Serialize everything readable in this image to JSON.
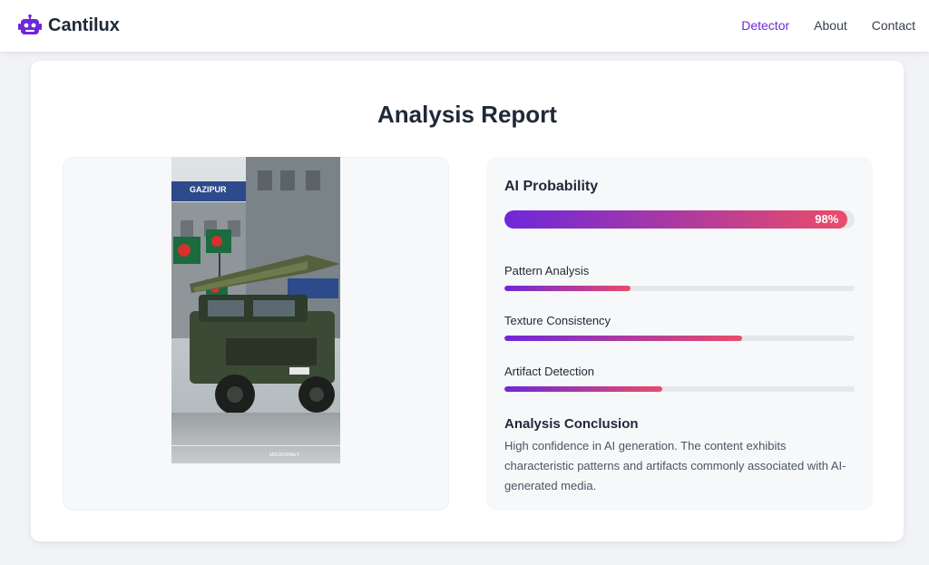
{
  "brand": {
    "name": "Cantilux",
    "icon": "robot-icon",
    "color": "#6d28d9"
  },
  "nav": [
    {
      "label": "Detector",
      "active": true
    },
    {
      "label": "About",
      "active": false
    },
    {
      "label": "Contact",
      "active": false
    }
  ],
  "report": {
    "title": "Analysis Report",
    "image": {
      "sign_text": "GAZIPUR",
      "watermark": "MIDJOURNEY"
    },
    "ai_probability": {
      "label": "AI Probability",
      "value": 98,
      "display": "98%"
    },
    "metrics": [
      {
        "label": "Pattern Analysis",
        "value": 36
      },
      {
        "label": "Texture Consistency",
        "value": 68
      },
      {
        "label": "Artifact Detection",
        "value": 45
      }
    ],
    "conclusion": {
      "title": "Analysis Conclusion",
      "text": "High confidence in AI generation. The content exhibits characteristic patterns and artifacts commonly associated with AI-generated media."
    }
  },
  "colors": {
    "accent": "#6d28d9",
    "gradient_end": "#ea4c6a",
    "track": "#e5e7eb"
  }
}
